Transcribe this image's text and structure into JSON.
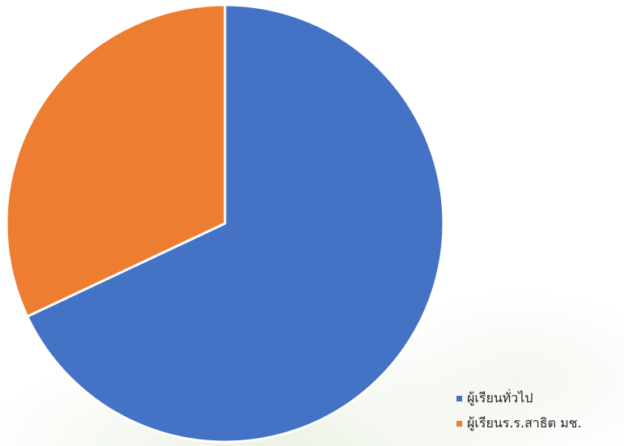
{
  "chart_data": {
    "type": "pie",
    "title": "",
    "slices": [
      {
        "label": "ผู้เรียนทั่วไป",
        "value": 68,
        "color": "#4472C4"
      },
      {
        "label": "ผู้เรียนร.ร.สาธิต มช.",
        "value": 32,
        "color": "#ED7D31"
      }
    ],
    "start_angle_deg": 0,
    "direction": "clockwise",
    "legend_position": "bottom-right"
  }
}
